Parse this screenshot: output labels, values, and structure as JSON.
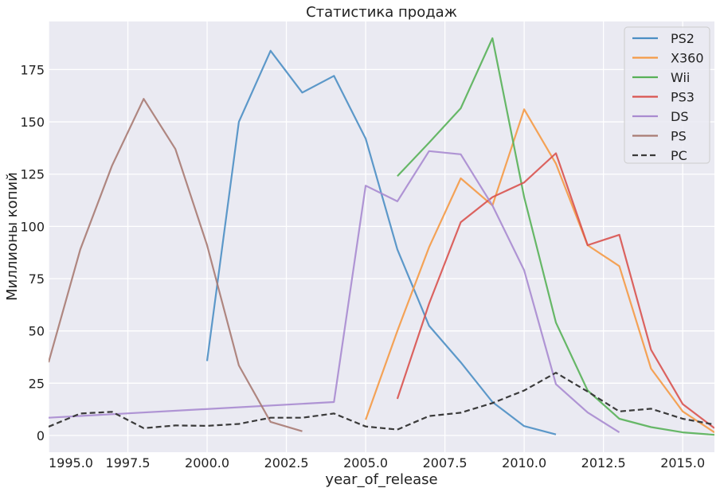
{
  "chart_data": {
    "type": "line",
    "title": "Статистика продаж",
    "xlabel": "year_of_release",
    "ylabel": "Миллионы копий",
    "xlim": [
      1995,
      2016
    ],
    "ylim": [
      -8,
      198
    ],
    "x_ticks": [
      1995,
      1997.5,
      2000,
      2002.5,
      2005,
      2007.5,
      2010,
      2012.5,
      2015
    ],
    "x_tick_labels": [
      "1995.0",
      "1997.5",
      "2000.0",
      "2002.5",
      "2005.0",
      "2007.5",
      "2010.0",
      "2012.5",
      "2015.0"
    ],
    "y_ticks": [
      0,
      25,
      50,
      75,
      100,
      125,
      150,
      175
    ],
    "y_tick_labels": [
      "0",
      "25",
      "50",
      "75",
      "100",
      "125",
      "150",
      "175"
    ],
    "grid": true,
    "legend_position": "top-right",
    "series": [
      {
        "name": "PS2",
        "color": "#4c8fc4",
        "dashed": false,
        "x": [
          2000,
          2001,
          2002,
          2003,
          2004,
          2005,
          2006,
          2007,
          2008,
          2009,
          2010,
          2011
        ],
        "y": [
          35.6,
          150.0,
          184.0,
          164.0,
          172.0,
          142.0,
          89.0,
          52.5,
          35.0,
          16.0,
          4.5,
          0.5
        ]
      },
      {
        "name": "X360",
        "color": "#f59a45",
        "dashed": false,
        "x": [
          2005,
          2006,
          2007,
          2008,
          2009,
          2010,
          2011,
          2012,
          2013,
          2014,
          2015,
          2016
        ],
        "y": [
          7.5,
          50.0,
          90.0,
          123.0,
          110.0,
          156.0,
          130.0,
          91.0,
          81.0,
          32.0,
          11.5,
          1.5
        ]
      },
      {
        "name": "Wii",
        "color": "#58b158",
        "dashed": false,
        "x": [
          2006,
          2007,
          2008,
          2009,
          2010,
          2011,
          2012,
          2013,
          2014,
          2015,
          2016
        ],
        "y": [
          124.0,
          140.0,
          156.5,
          190.0,
          114.0,
          54.0,
          21.5,
          8.0,
          4.0,
          1.5,
          0.3
        ]
      },
      {
        "name": "PS3",
        "color": "#d9534f",
        "dashed": false,
        "x": [
          2006,
          2007,
          2008,
          2009,
          2010,
          2011,
          2012,
          2013,
          2014,
          2015,
          2016
        ],
        "y": [
          17.5,
          63.0,
          102.0,
          114.0,
          121.0,
          135.0,
          91.0,
          96.0,
          41.0,
          15.0,
          3.5
        ]
      },
      {
        "name": "DS",
        "color": "#a98bd0",
        "dashed": false,
        "x": [
          1995,
          2004,
          2005,
          2006,
          2007,
          2008,
          2009,
          2010,
          2011,
          2012,
          2013
        ],
        "y": [
          8.5,
          16.0,
          119.5,
          112.0,
          136.0,
          134.5,
          110.0,
          79.0,
          24.5,
          11.0,
          1.5
        ]
      },
      {
        "name": "PS",
        "color": "#a97b73",
        "dashed": false,
        "x": [
          1995,
          1996,
          1997,
          1998,
          1999,
          2000,
          2001,
          2002,
          2003
        ],
        "y": [
          35.0,
          89.0,
          129.0,
          161.0,
          137.0,
          91.0,
          33.5,
          6.5,
          2.0
        ]
      },
      {
        "name": "PC",
        "color": "#3a3a3a",
        "dashed": true,
        "x": [
          1995,
          1996,
          1997,
          1998,
          1999,
          2000,
          2001,
          2002,
          2003,
          2004,
          2005,
          2006,
          2007,
          2008,
          2009,
          2010,
          2011,
          2012,
          2013,
          2014,
          2015,
          2016
        ],
        "y": [
          4.2,
          10.5,
          11.3,
          3.5,
          4.8,
          4.6,
          5.5,
          8.5,
          8.5,
          10.5,
          4.3,
          2.8,
          9.3,
          10.9,
          15.5,
          21.5,
          30.0,
          21.0,
          11.5,
          12.8,
          8.0,
          5.2
        ]
      }
    ]
  }
}
